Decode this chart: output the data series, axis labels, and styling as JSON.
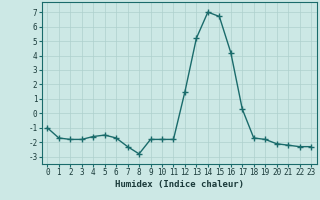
{
  "xlabel": "Humidex (Indice chaleur)",
  "background_color": "#cce8e5",
  "line_color": "#1a6b6b",
  "grid_color": "#aed0cd",
  "x_data": [
    0,
    1,
    2,
    3,
    4,
    5,
    6,
    7,
    8,
    9,
    10,
    11,
    12,
    13,
    14,
    15,
    16,
    17,
    18,
    19,
    20,
    21,
    22,
    23
  ],
  "y_data": [
    -1.0,
    -1.7,
    -1.8,
    -1.8,
    -1.6,
    -1.5,
    -1.7,
    -2.3,
    -2.8,
    -1.8,
    -1.8,
    -1.8,
    1.5,
    5.2,
    7.0,
    6.7,
    4.2,
    0.3,
    -1.7,
    -1.8,
    -2.1,
    -2.2,
    -2.3,
    -2.3
  ],
  "ylim": [
    -3.5,
    7.7
  ],
  "xlim": [
    -0.5,
    23.5
  ],
  "yticks": [
    -3,
    -2,
    -1,
    0,
    1,
    2,
    3,
    4,
    5,
    6,
    7
  ],
  "xticks": [
    0,
    1,
    2,
    3,
    4,
    5,
    6,
    7,
    8,
    9,
    10,
    11,
    12,
    13,
    14,
    15,
    16,
    17,
    18,
    19,
    20,
    21,
    22,
    23
  ],
  "marker": "+",
  "marker_size": 4,
  "line_width": 1.0,
  "tick_fontsize": 5.5,
  "xlabel_fontsize": 6.5
}
